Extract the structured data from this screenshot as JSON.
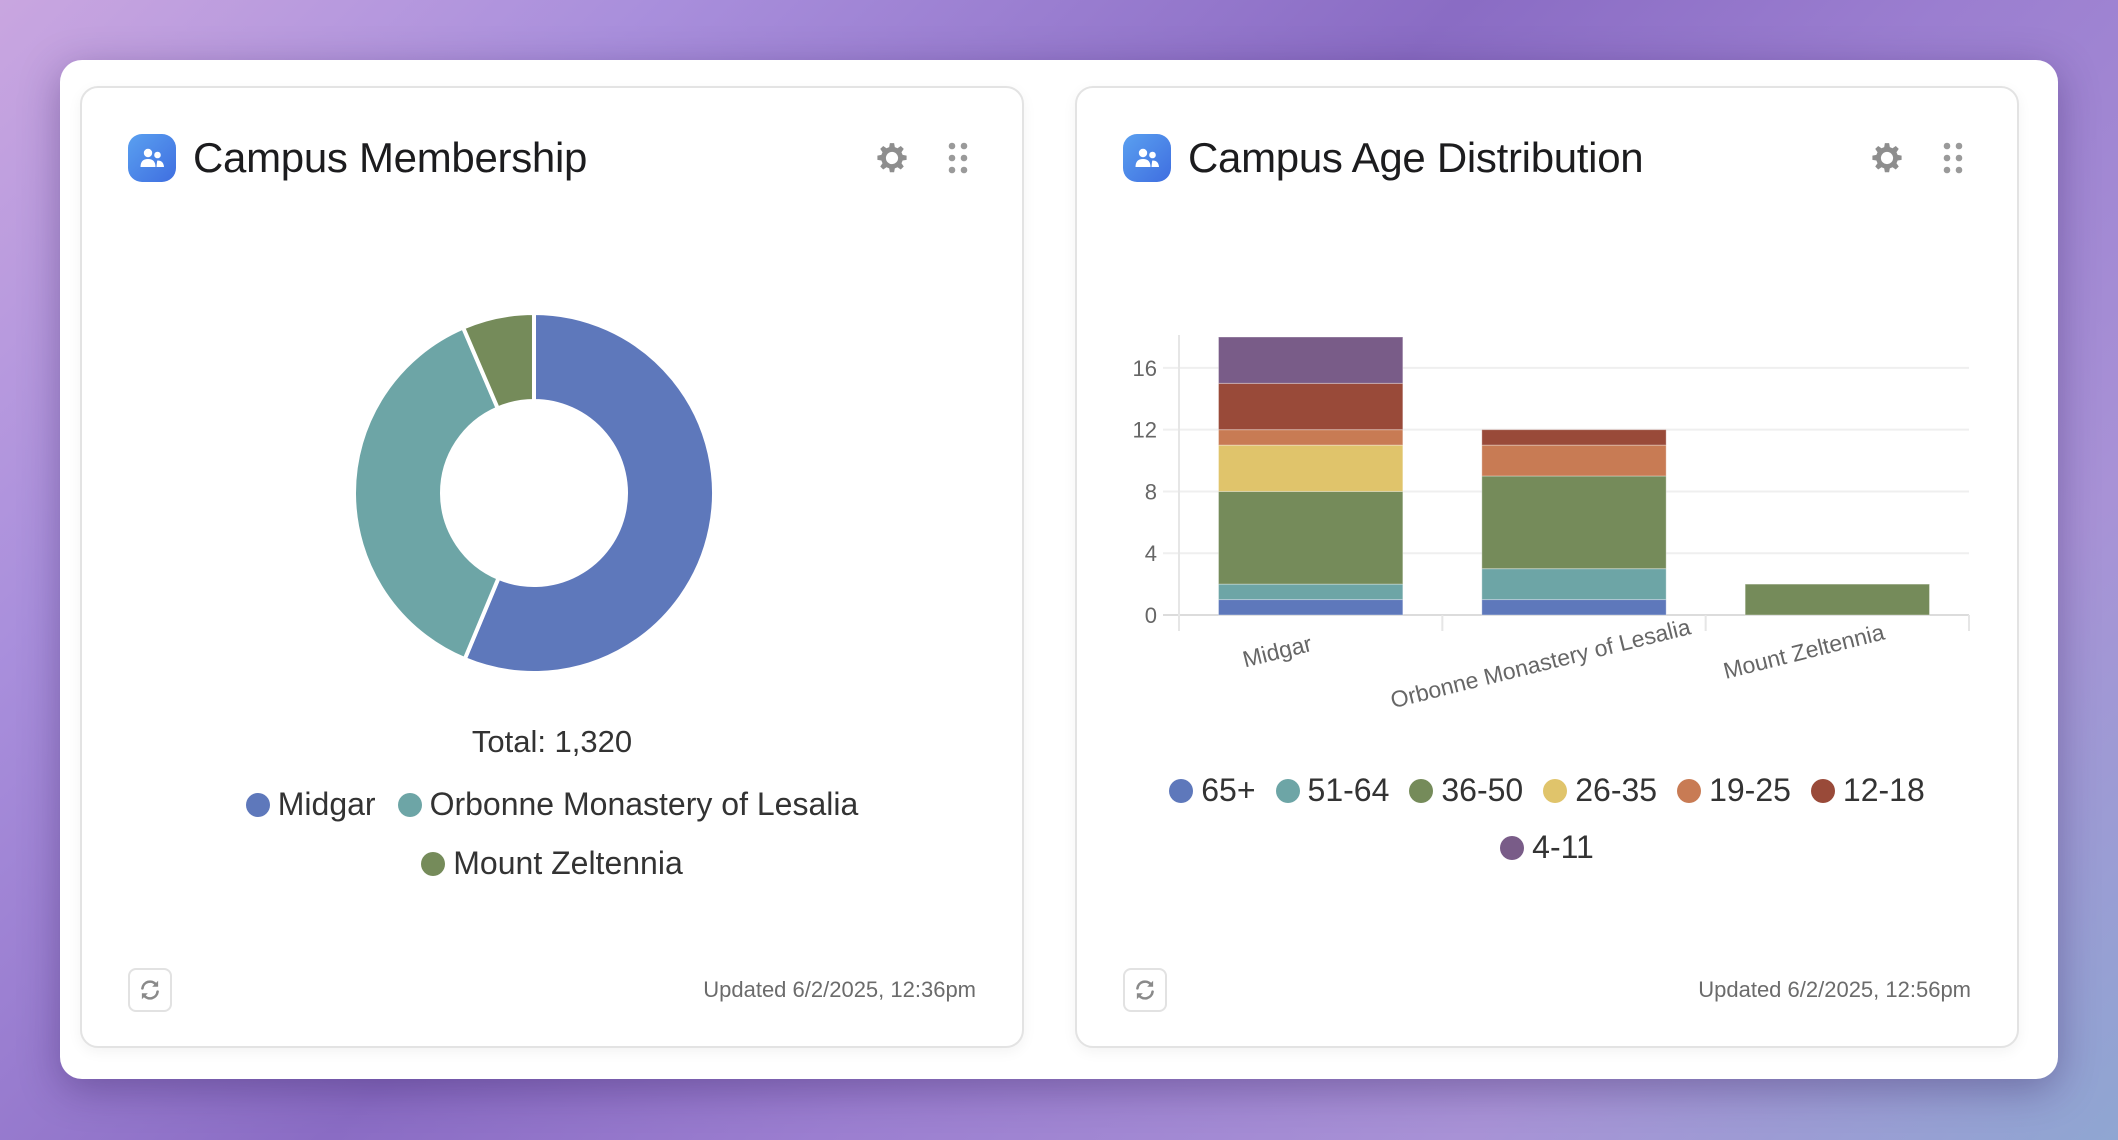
{
  "cards": [
    {
      "title": "Campus Membership",
      "icon": "people-icon",
      "settings_icon": "gear-icon",
      "drag_icon": "drag-handle-icon",
      "refresh_icon": "refresh-icon",
      "updated": "Updated 6/2/2025, 12:36pm",
      "total_label": "Total: 1,320"
    },
    {
      "title": "Campus Age Distribution",
      "icon": "people-icon",
      "settings_icon": "gear-icon",
      "drag_icon": "drag-handle-icon",
      "refresh_icon": "refresh-icon",
      "updated": "Updated 6/2/2025, 12:56pm"
    }
  ],
  "chart_data": [
    {
      "type": "pie",
      "donut": true,
      "title": "Campus Membership",
      "total": 1320,
      "categories": [
        "Midgar",
        "Orbonne Monastery of Lesalia",
        "Mount Zeltennia"
      ],
      "values": [
        743,
        492,
        85
      ],
      "colors": [
        "#5e78bb",
        "#6da5a6",
        "#758b5a"
      ],
      "legend": "bottom"
    },
    {
      "type": "bar",
      "stacked": true,
      "title": "Campus Age Distribution",
      "categories": [
        "Midgar",
        "Orbonne Monastery of Lesalia",
        "Mount Zeltennia"
      ],
      "series": [
        {
          "name": "65+",
          "color": "#5e78bb",
          "values": [
            1,
            1,
            0
          ]
        },
        {
          "name": "51-64",
          "color": "#6da5a6",
          "values": [
            1,
            2,
            0
          ]
        },
        {
          "name": "36-50",
          "color": "#758b5a",
          "values": [
            6,
            6,
            2
          ]
        },
        {
          "name": "26-35",
          "color": "#e0c46b",
          "values": [
            3,
            0,
            0
          ]
        },
        {
          "name": "19-25",
          "color": "#c87b54",
          "values": [
            1,
            2,
            0
          ]
        },
        {
          "name": "12-18",
          "color": "#994a39",
          "values": [
            3,
            1,
            0
          ]
        },
        {
          "name": "4-11",
          "color": "#795c88",
          "values": [
            3,
            0,
            0
          ]
        }
      ],
      "yticks": [
        0,
        4,
        8,
        12,
        16
      ],
      "ylim": [
        0,
        18
      ],
      "xlabel": "",
      "ylabel": "",
      "grid": true,
      "legend": "bottom"
    }
  ]
}
